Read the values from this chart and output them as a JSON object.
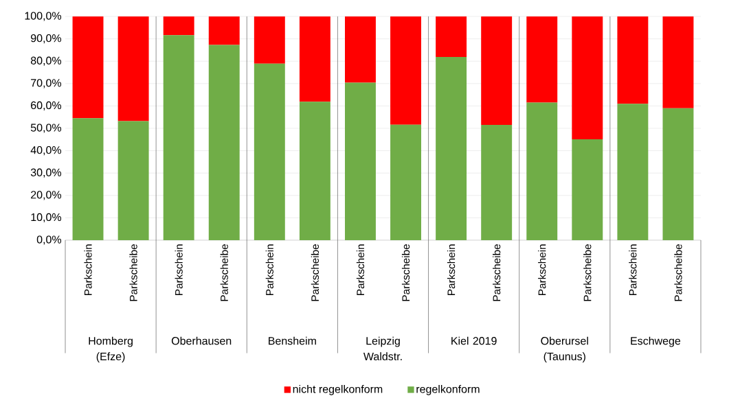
{
  "chart_data": {
    "type": "bar",
    "stacked": true,
    "categories": [
      "Parkschein",
      "Parkscheibe",
      "Parkschein",
      "Parkscheibe",
      "Parkschein",
      "Parkscheibe",
      "Parkschein",
      "Parkscheibe",
      "Parkschein",
      "Parkscheibe",
      "Parkschein",
      "Parkscheibe",
      "Parkschein",
      "Parkscheibe"
    ],
    "series": [
      {
        "name": "regelkonform",
        "color": "#70ad47",
        "values": [
          54.5,
          53.2,
          91.6,
          87.3,
          78.9,
          61.9,
          70.4,
          51.6,
          81.9,
          51.5,
          61.5,
          45.1,
          61.0,
          59.0
        ]
      },
      {
        "name": "nicht regelkonform",
        "color": "#ff0000",
        "values": [
          45.5,
          46.8,
          8.4,
          12.7,
          21.1,
          38.1,
          29.6,
          48.4,
          18.1,
          48.5,
          38.5,
          54.9,
          39.0,
          41.0
        ]
      }
    ],
    "annotations": [
      "Homberg (Efze)",
      "Oberhausen",
      "Bensheim",
      "Leipzig Waldstr.",
      "Kiel 2019",
      "Oberursel (Taunus)",
      "Eschwege"
    ],
    "ylim": [
      0,
      100
    ],
    "yticks": [
      {
        "value": 0,
        "label": "0,0%"
      },
      {
        "value": 10,
        "label": "10,0%"
      },
      {
        "value": 20,
        "label": "20,0%"
      },
      {
        "value": 30,
        "label": "30,0%"
      },
      {
        "value": 40,
        "label": "40,0%"
      },
      {
        "value": 50,
        "label": "50,0%"
      },
      {
        "value": 60,
        "label": "60,0%"
      },
      {
        "value": 70,
        "label": "70,0%"
      },
      {
        "value": 80,
        "label": "80,0%"
      },
      {
        "value": 90,
        "label": "90,0%"
      },
      {
        "value": 100,
        "label": "100,0%"
      }
    ],
    "grid": "y",
    "legend": "bottom"
  }
}
